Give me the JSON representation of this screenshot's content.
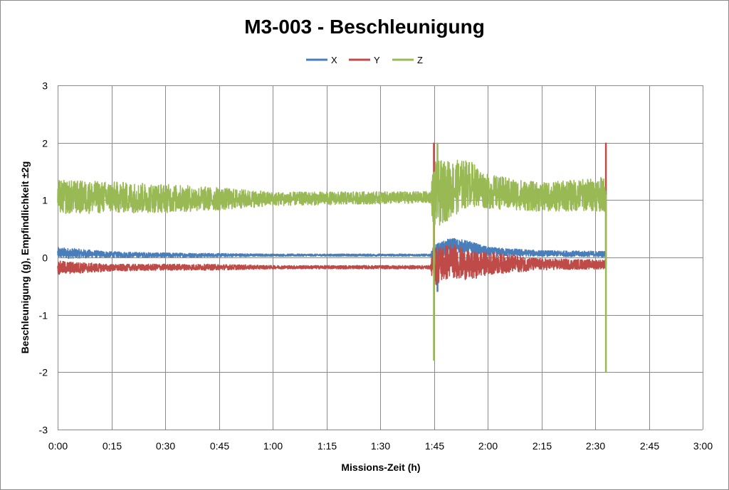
{
  "chart_data": {
    "type": "line",
    "title": "M3-003 - Beschleunigung",
    "xlabel": "Missions-Zeit (h)",
    "ylabel": "Beschleunigung (g), Empfindlichkeit ±2g",
    "x_ticks": [
      "0:00",
      "0:15",
      "0:30",
      "0:45",
      "1:00",
      "1:15",
      "1:30",
      "1:45",
      "2:00",
      "2:15",
      "2:30",
      "2:45",
      "3:00"
    ],
    "y_ticks": [
      "3",
      "2",
      "1",
      "0",
      "-1",
      "-2",
      "-3"
    ],
    "xlim": [
      "0:00",
      "3:00"
    ],
    "ylim": [
      -3,
      3
    ],
    "grid": true,
    "legend": "top-center",
    "series": [
      {
        "name": "X",
        "color": "#4a7ebb",
        "points": [
          [
            "0:00",
            0.08
          ],
          [
            "0:15",
            0.05
          ],
          [
            "0:30",
            0.04
          ],
          [
            "0:45",
            0.04
          ],
          [
            "1:00",
            0.04
          ],
          [
            "1:15",
            0.04
          ],
          [
            "1:30",
            0.04
          ],
          [
            "1:44",
            0.04
          ],
          [
            "1:45",
            0.2
          ],
          [
            "1:46",
            -0.6
          ],
          [
            "1:50",
            0.22
          ],
          [
            "1:55",
            0.18
          ],
          [
            "2:00",
            0.1
          ],
          [
            "2:15",
            0.07
          ],
          [
            "2:30",
            0.06
          ],
          [
            "2:33",
            0.05
          ]
        ],
        "noise": [
          [
            "0:00",
            0.1
          ],
          [
            "0:15",
            0.05
          ],
          [
            "0:45",
            0.03
          ],
          [
            "1:00",
            0.02
          ],
          [
            "1:44",
            0.02
          ],
          [
            "1:45",
            0.15
          ],
          [
            "2:00",
            0.08
          ],
          [
            "2:15",
            0.05
          ],
          [
            "2:33",
            0.05
          ]
        ]
      },
      {
        "name": "Y",
        "color": "#be4b48",
        "points": [
          [
            "0:00",
            -0.18
          ],
          [
            "0:15",
            -0.18
          ],
          [
            "0:30",
            -0.17
          ],
          [
            "0:45",
            -0.17
          ],
          [
            "1:00",
            -0.17
          ],
          [
            "1:15",
            -0.17
          ],
          [
            "1:30",
            -0.17
          ],
          [
            "1:44",
            -0.17
          ],
          [
            "1:45",
            2.0
          ],
          [
            "1:45",
            0.1
          ],
          [
            "1:50",
            -0.05
          ],
          [
            "1:55",
            -0.15
          ],
          [
            "2:00",
            -0.1
          ],
          [
            "2:15",
            -0.12
          ],
          [
            "2:30",
            -0.12
          ],
          [
            "2:33",
            -0.12
          ],
          [
            "2:33",
            2.0
          ]
        ],
        "noise": [
          [
            "0:00",
            0.12
          ],
          [
            "0:15",
            0.06
          ],
          [
            "0:45",
            0.05
          ],
          [
            "1:00",
            0.03
          ],
          [
            "1:44",
            0.03
          ],
          [
            "1:45",
            0.35
          ],
          [
            "2:00",
            0.2
          ],
          [
            "2:15",
            0.1
          ],
          [
            "2:33",
            0.08
          ]
        ]
      },
      {
        "name": "Z",
        "color": "#98b954",
        "points": [
          [
            "0:00",
            1.05
          ],
          [
            "0:15",
            1.05
          ],
          [
            "0:30",
            1.03
          ],
          [
            "0:45",
            1.02
          ],
          [
            "1:00",
            1.02
          ],
          [
            "1:15",
            1.03
          ],
          [
            "1:30",
            1.04
          ],
          [
            "1:44",
            1.05
          ],
          [
            "1:45",
            -1.8
          ],
          [
            "1:46",
            2.0
          ],
          [
            "1:50",
            1.2
          ],
          [
            "1:55",
            1.3
          ],
          [
            "2:00",
            1.15
          ],
          [
            "2:15",
            1.05
          ],
          [
            "2:30",
            1.1
          ],
          [
            "2:33",
            1.0
          ],
          [
            "2:33",
            -2.0
          ]
        ],
        "noise": [
          [
            "0:00",
            0.3
          ],
          [
            "0:30",
            0.25
          ],
          [
            "0:45",
            0.2
          ],
          [
            "1:00",
            0.12
          ],
          [
            "1:44",
            0.1
          ],
          [
            "1:45",
            0.6
          ],
          [
            "2:00",
            0.3
          ],
          [
            "2:15",
            0.25
          ],
          [
            "2:33",
            0.3
          ]
        ]
      }
    ]
  }
}
